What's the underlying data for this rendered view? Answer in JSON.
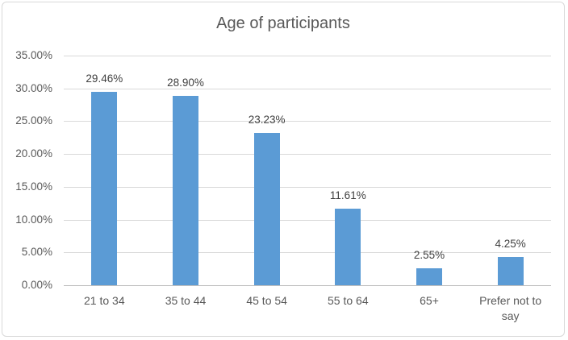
{
  "chart_data": {
    "type": "bar",
    "title": "Age of participants",
    "categories": [
      "21 to 34",
      "35 to 44",
      "45 to 54",
      "55 to 64",
      "65+",
      "Prefer not to say"
    ],
    "values": [
      29.46,
      28.9,
      23.23,
      11.61,
      2.55,
      4.25
    ],
    "data_labels": [
      "29.46%",
      "28.90%",
      "23.23%",
      "11.61%",
      "2.55%",
      "4.25%"
    ],
    "xlabel": "",
    "ylabel": "",
    "ylim": [
      0,
      35
    ],
    "ytick_step": 5,
    "ytick_labels": [
      "0.00%",
      "5.00%",
      "10.00%",
      "15.00%",
      "20.00%",
      "25.00%",
      "30.00%",
      "35.00%"
    ],
    "grid": true,
    "legend": false,
    "colors": {
      "bar": "#5b9bd5",
      "title_text": "#595959",
      "axis_text": "#595959",
      "data_label_text": "#404040",
      "gridline": "#d9d9d9",
      "axis_line": "#bfbfbf",
      "border": "#d9d9d9",
      "background": "#ffffff"
    }
  }
}
